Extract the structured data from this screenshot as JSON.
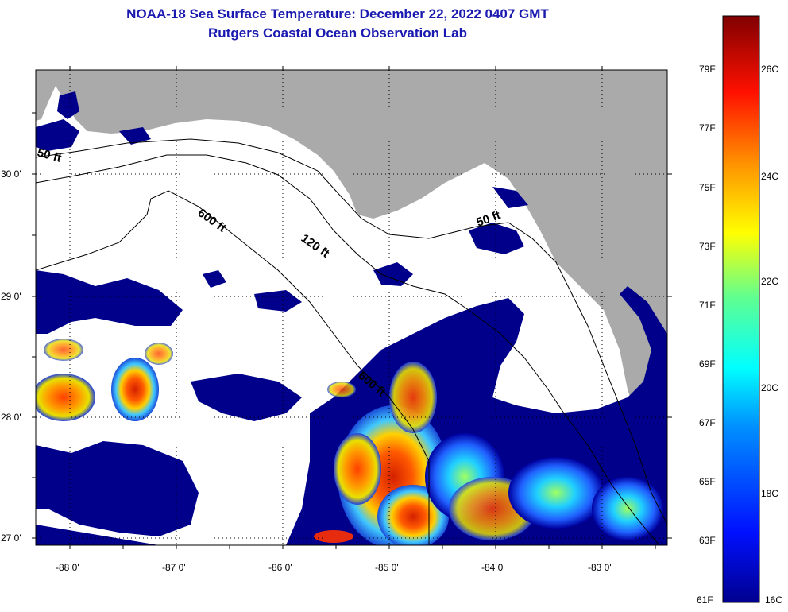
{
  "title": "NOAA-18 Sea Surface Temperature:  December 22, 2022 0407 GMT",
  "subtitle": "Rutgers Coastal Ocean Observation Lab",
  "map": {
    "lat_ticks": [
      "30 0'",
      "29 0'",
      "28 0'",
      "27 0'"
    ],
    "lon_ticks": [
      "-88 0'",
      "-87 0'",
      "-86 0'",
      "-85 0'",
      "-84 0'",
      "-83 0'"
    ],
    "contours": [
      "600 ft",
      "120 ft",
      "50 ft",
      "600 ft",
      "50 ft"
    ],
    "colors": {
      "land": "#aaaaaa",
      "cloud": "#ffffff",
      "cold": "#00008b",
      "warm": "#ff3000",
      "contour": "#000000"
    }
  },
  "colorbar": {
    "fahrenheit": [
      "79F",
      "77F",
      "75F",
      "73F",
      "71F",
      "69F",
      "67F",
      "65F",
      "63F",
      "61F"
    ],
    "celsius": [
      "26C",
      "24C",
      "22C",
      "20C",
      "18C",
      "16C"
    ]
  }
}
